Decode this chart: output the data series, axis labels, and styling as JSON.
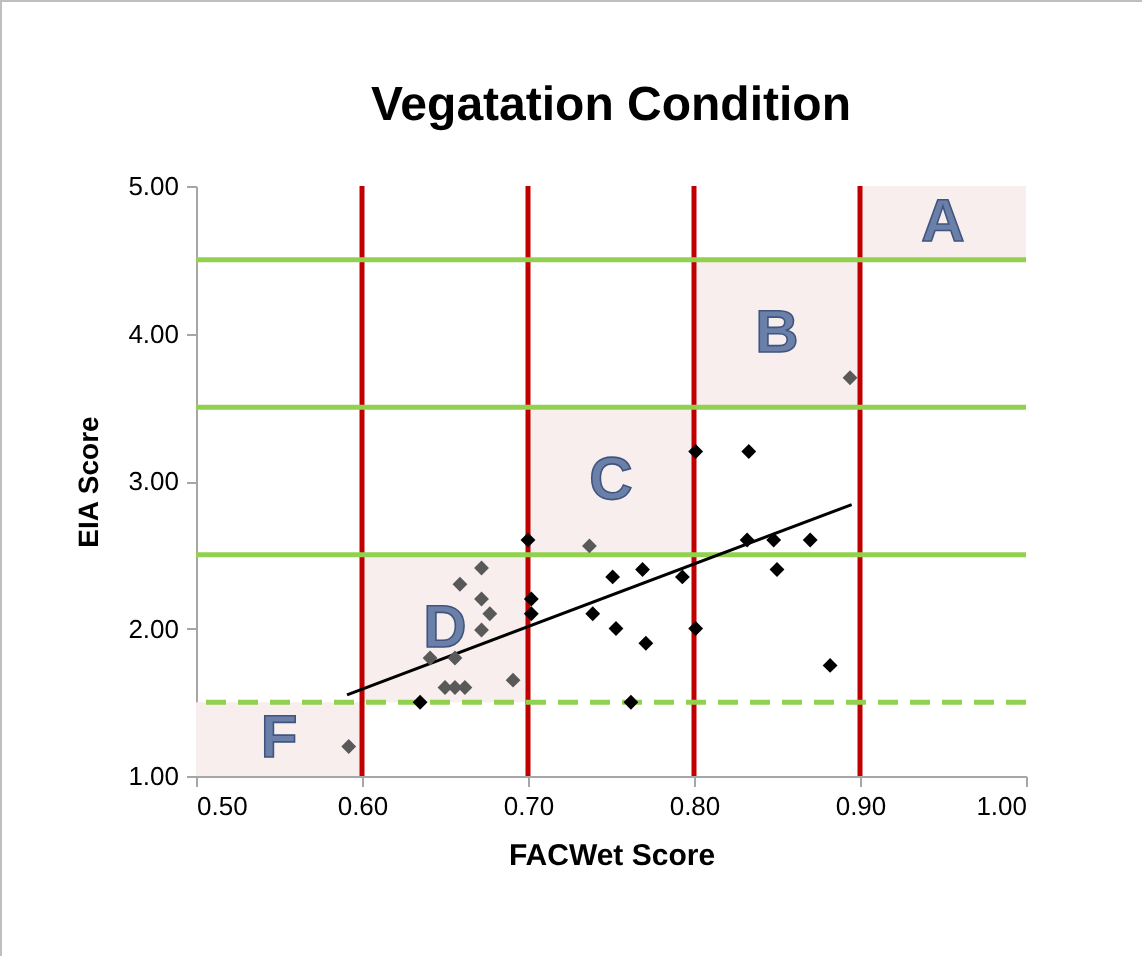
{
  "chart_data": {
    "type": "scatter",
    "title": "Vegatation Condition",
    "xlabel": "FACWet Score",
    "ylabel": "EIA Score",
    "xlim": [
      0.5,
      1.0
    ],
    "ylim": [
      1.0,
      5.0
    ],
    "xticks": [
      {
        "value": 0.5,
        "label": "0.50"
      },
      {
        "value": 0.6,
        "label": "0.60"
      },
      {
        "value": 0.7,
        "label": "0.70"
      },
      {
        "value": 0.8,
        "label": "0.80"
      },
      {
        "value": 0.9,
        "label": "0.90"
      },
      {
        "value": 1.0,
        "label": "1.00"
      }
    ],
    "yticks": [
      {
        "value": 1,
        "label": "1.00"
      },
      {
        "value": 2,
        "label": "2.00"
      },
      {
        "value": 3,
        "label": "3.00"
      },
      {
        "value": 4,
        "label": "4.00"
      },
      {
        "value": 5,
        "label": "5.00"
      }
    ],
    "grid": false,
    "marker": "diamond",
    "series": [
      {
        "color": "#595959",
        "x": [
          0.592,
          0.641,
          0.656,
          0.65,
          0.656,
          0.662,
          0.691,
          0.659,
          0.672,
          0.672,
          0.677,
          0.672,
          0.737,
          0.894
        ],
        "values": [
          1.2,
          1.8,
          1.8,
          1.6,
          1.6,
          1.6,
          1.65,
          2.3,
          2.41,
          2.2,
          2.1,
          1.99,
          2.56,
          3.7
        ]
      },
      {
        "color": "#000000",
        "x": [
          0.635,
          0.7,
          0.702,
          0.702,
          0.751,
          0.769,
          0.739,
          0.753,
          0.771,
          0.762,
          0.793,
          0.801,
          0.801,
          0.833,
          0.832,
          0.848,
          0.85,
          0.87,
          0.882
        ],
        "values": [
          1.5,
          2.6,
          2.2,
          2.1,
          2.35,
          2.4,
          2.1,
          2.0,
          1.9,
          1.5,
          2.35,
          3.2,
          2.0,
          3.2,
          2.6,
          2.6,
          2.4,
          2.6,
          1.75
        ]
      },
      {
        "type": "line",
        "color": "#000000",
        "line_style": "solid",
        "marker": "none",
        "x": [
          0.591,
          0.895
        ],
        "values": [
          1.55,
          2.84
        ]
      }
    ],
    "ref_lines": [
      {
        "axis": "x",
        "value": 0.6,
        "color": "#c00000",
        "line_style": "solid"
      },
      {
        "axis": "x",
        "value": 0.7,
        "color": "#c00000",
        "line_style": "solid"
      },
      {
        "axis": "x",
        "value": 0.8,
        "color": "#c00000",
        "line_style": "solid"
      },
      {
        "axis": "x",
        "value": 0.9,
        "color": "#c00000",
        "line_style": "solid"
      },
      {
        "axis": "y",
        "value": 1.5,
        "color": "#92d050",
        "line_style": "dashed"
      },
      {
        "axis": "y",
        "value": 2.5,
        "color": "#92d050",
        "line_style": "solid"
      },
      {
        "axis": "y",
        "value": 3.5,
        "color": "#92d050",
        "line_style": "solid"
      },
      {
        "axis": "y",
        "value": 4.5,
        "color": "#92d050",
        "line_style": "solid"
      }
    ],
    "bands": [
      {
        "axis": "x",
        "from": 0.5,
        "to": 0.6,
        "label": "F",
        "color": "#f8eeee"
      },
      {
        "axis": "x",
        "from": 0.6,
        "to": 0.7,
        "label": "D",
        "color": "#f8eeee"
      },
      {
        "axis": "x",
        "from": 0.7,
        "to": 0.8,
        "label": "C",
        "color": "#f8eeee"
      },
      {
        "axis": "x",
        "from": 0.8,
        "to": 0.9,
        "label": "B",
        "color": "#f8eeee"
      },
      {
        "axis": "x",
        "from": 0.9,
        "to": 1.0,
        "label": "A",
        "color": "#f8eeee"
      }
    ]
  }
}
